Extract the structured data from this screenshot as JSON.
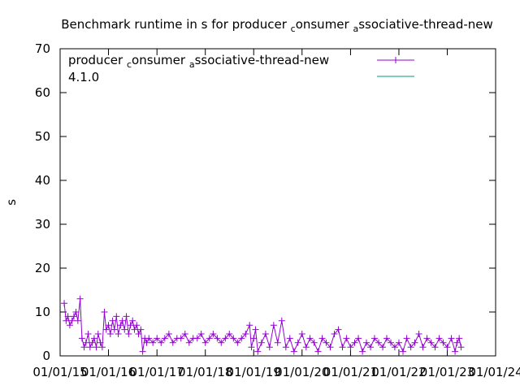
{
  "chart_data": {
    "type": "scatter",
    "title": {
      "parts": [
        {
          "text": "Benchmark runtime in s for producer "
        },
        {
          "text": "c",
          "sub": true
        },
        {
          "text": "onsumer "
        },
        {
          "text": "a",
          "sub": true
        },
        {
          "text": "ssociative-thread-new"
        }
      ]
    },
    "ylabel": "s",
    "xlabel": "",
    "ylim": [
      0,
      70
    ],
    "yticks": [
      "0",
      "10",
      "20",
      "30",
      "40",
      "50",
      "60",
      "70"
    ],
    "xlim": [
      "2015-01-01",
      "2024-01-01"
    ],
    "xticks": [
      "01/01/15",
      "01/01/16",
      "01/01/17",
      "01/01/18",
      "01/01/19",
      "01/01/20",
      "01/01/21",
      "01/01/22",
      "01/01/23",
      "01/01/24"
    ],
    "grid": false,
    "legend_position": "top-right",
    "series": [
      {
        "name_parts": [
          {
            "text": "producer "
          },
          {
            "text": "c",
            "sub": true
          },
          {
            "text": "onsumer "
          },
          {
            "text": "a",
            "sub": true
          },
          {
            "text": "ssociative-thread-new"
          }
        ],
        "color": "#9400d3",
        "marker": "plus",
        "points": [
          {
            "x": "2015-02-01",
            "y": 12
          },
          {
            "x": "2015-02-15",
            "y": 8
          },
          {
            "x": "2015-03-01",
            "y": 9
          },
          {
            "x": "2015-03-15",
            "y": 7
          },
          {
            "x": "2015-04-01",
            "y": 8
          },
          {
            "x": "2015-04-15",
            "y": 9
          },
          {
            "x": "2015-05-01",
            "y": 10
          },
          {
            "x": "2015-05-15",
            "y": 8
          },
          {
            "x": "2015-06-01",
            "y": 13
          },
          {
            "x": "2015-06-15",
            "y": 4
          },
          {
            "x": "2015-07-01",
            "y": 2
          },
          {
            "x": "2015-07-15",
            "y": 3
          },
          {
            "x": "2015-08-01",
            "y": 5
          },
          {
            "x": "2015-08-15",
            "y": 2
          },
          {
            "x": "2015-09-01",
            "y": 3
          },
          {
            "x": "2015-09-15",
            "y": 4
          },
          {
            "x": "2015-10-01",
            "y": 2
          },
          {
            "x": "2015-10-15",
            "y": 5
          },
          {
            "x": "2015-11-01",
            "y": 3
          },
          {
            "x": "2015-11-15",
            "y": 2
          },
          {
            "x": "2015-12-01",
            "y": 10
          },
          {
            "x": "2015-12-15",
            "y": 6
          },
          {
            "x": "2016-01-01",
            "y": 7
          },
          {
            "x": "2016-01-15",
            "y": 5
          },
          {
            "x": "2016-02-01",
            "y": 8
          },
          {
            "x": "2016-02-15",
            "y": 6
          },
          {
            "x": "2016-03-01",
            "y": 9
          },
          {
            "x": "2016-03-15",
            "y": 5
          },
          {
            "x": "2016-04-01",
            "y": 7
          },
          {
            "x": "2016-04-15",
            "y": 8
          },
          {
            "x": "2016-05-01",
            "y": 6
          },
          {
            "x": "2016-05-15",
            "y": 9
          },
          {
            "x": "2016-06-01",
            "y": 5
          },
          {
            "x": "2016-06-15",
            "y": 7
          },
          {
            "x": "2016-07-01",
            "y": 8
          },
          {
            "x": "2016-07-15",
            "y": 6
          },
          {
            "x": "2016-08-01",
            "y": 7
          },
          {
            "x": "2016-08-15",
            "y": 5
          },
          {
            "x": "2016-09-01",
            "y": 6
          },
          {
            "x": "2016-09-15",
            "y": 1
          },
          {
            "x": "2016-10-01",
            "y": 4
          },
          {
            "x": "2016-10-15",
            "y": 3
          },
          {
            "x": "2016-11-01",
            "y": 4
          },
          {
            "x": "2016-12-01",
            "y": 3
          },
          {
            "x": "2017-01-01",
            "y": 4
          },
          {
            "x": "2017-02-01",
            "y": 3
          },
          {
            "x": "2017-03-01",
            "y": 4
          },
          {
            "x": "2017-04-01",
            "y": 5
          },
          {
            "x": "2017-05-01",
            "y": 3
          },
          {
            "x": "2017-06-01",
            "y": 4
          },
          {
            "x": "2017-07-01",
            "y": 4
          },
          {
            "x": "2017-08-01",
            "y": 5
          },
          {
            "x": "2017-09-01",
            "y": 3
          },
          {
            "x": "2017-10-01",
            "y": 4
          },
          {
            "x": "2017-11-01",
            "y": 4
          },
          {
            "x": "2017-12-01",
            "y": 5
          },
          {
            "x": "2018-01-01",
            "y": 3
          },
          {
            "x": "2018-02-01",
            "y": 4
          },
          {
            "x": "2018-03-01",
            "y": 5
          },
          {
            "x": "2018-04-01",
            "y": 4
          },
          {
            "x": "2018-05-01",
            "y": 3
          },
          {
            "x": "2018-06-01",
            "y": 4
          },
          {
            "x": "2018-07-01",
            "y": 5
          },
          {
            "x": "2018-08-01",
            "y": 4
          },
          {
            "x": "2018-09-01",
            "y": 3
          },
          {
            "x": "2018-10-01",
            "y": 4
          },
          {
            "x": "2018-11-01",
            "y": 5
          },
          {
            "x": "2018-12-01",
            "y": 7
          },
          {
            "x": "2018-12-15",
            "y": 2
          },
          {
            "x": "2019-01-01",
            "y": 4
          },
          {
            "x": "2019-01-15",
            "y": 6
          },
          {
            "x": "2019-02-01",
            "y": 1
          },
          {
            "x": "2019-03-01",
            "y": 3
          },
          {
            "x": "2019-04-01",
            "y": 5
          },
          {
            "x": "2019-05-01",
            "y": 2
          },
          {
            "x": "2019-06-01",
            "y": 7
          },
          {
            "x": "2019-07-01",
            "y": 3
          },
          {
            "x": "2019-08-01",
            "y": 8
          },
          {
            "x": "2019-09-01",
            "y": 2
          },
          {
            "x": "2019-10-01",
            "y": 4
          },
          {
            "x": "2019-11-01",
            "y": 1
          },
          {
            "x": "2019-12-01",
            "y": 3
          },
          {
            "x": "2020-01-01",
            "y": 5
          },
          {
            "x": "2020-02-01",
            "y": 2
          },
          {
            "x": "2020-03-01",
            "y": 4
          },
          {
            "x": "2020-04-01",
            "y": 3
          },
          {
            "x": "2020-05-01",
            "y": 1
          },
          {
            "x": "2020-06-01",
            "y": 4
          },
          {
            "x": "2020-07-01",
            "y": 3
          },
          {
            "x": "2020-08-01",
            "y": 2
          },
          {
            "x": "2020-09-01",
            "y": 5
          },
          {
            "x": "2020-10-01",
            "y": 6
          },
          {
            "x": "2020-11-01",
            "y": 2
          },
          {
            "x": "2020-12-01",
            "y": 4
          },
          {
            "x": "2021-01-01",
            "y": 2
          },
          {
            "x": "2021-02-01",
            "y": 3
          },
          {
            "x": "2021-03-01",
            "y": 4
          },
          {
            "x": "2021-04-01",
            "y": 1
          },
          {
            "x": "2021-05-01",
            "y": 3
          },
          {
            "x": "2021-06-01",
            "y": 2
          },
          {
            "x": "2021-07-01",
            "y": 4
          },
          {
            "x": "2021-08-01",
            "y": 3
          },
          {
            "x": "2021-09-01",
            "y": 2
          },
          {
            "x": "2021-10-01",
            "y": 4
          },
          {
            "x": "2021-11-01",
            "y": 3
          },
          {
            "x": "2021-12-01",
            "y": 2
          },
          {
            "x": "2022-01-01",
            "y": 3
          },
          {
            "x": "2022-02-01",
            "y": 1
          },
          {
            "x": "2022-03-01",
            "y": 4
          },
          {
            "x": "2022-04-01",
            "y": 2
          },
          {
            "x": "2022-05-01",
            "y": 3
          },
          {
            "x": "2022-06-01",
            "y": 5
          },
          {
            "x": "2022-07-01",
            "y": 2
          },
          {
            "x": "2022-08-01",
            "y": 4
          },
          {
            "x": "2022-09-01",
            "y": 3
          },
          {
            "x": "2022-10-01",
            "y": 2
          },
          {
            "x": "2022-11-01",
            "y": 4
          },
          {
            "x": "2022-12-01",
            "y": 3
          },
          {
            "x": "2023-01-01",
            "y": 2
          },
          {
            "x": "2023-02-01",
            "y": 4
          },
          {
            "x": "2023-03-01",
            "y": 1
          },
          {
            "x": "2023-03-15",
            "y": 3
          },
          {
            "x": "2023-04-01",
            "y": 4
          },
          {
            "x": "2023-04-15",
            "y": 2
          }
        ]
      },
      {
        "name": "4.1.0",
        "color": "#009e73",
        "marker": "line",
        "points": []
      }
    ]
  }
}
